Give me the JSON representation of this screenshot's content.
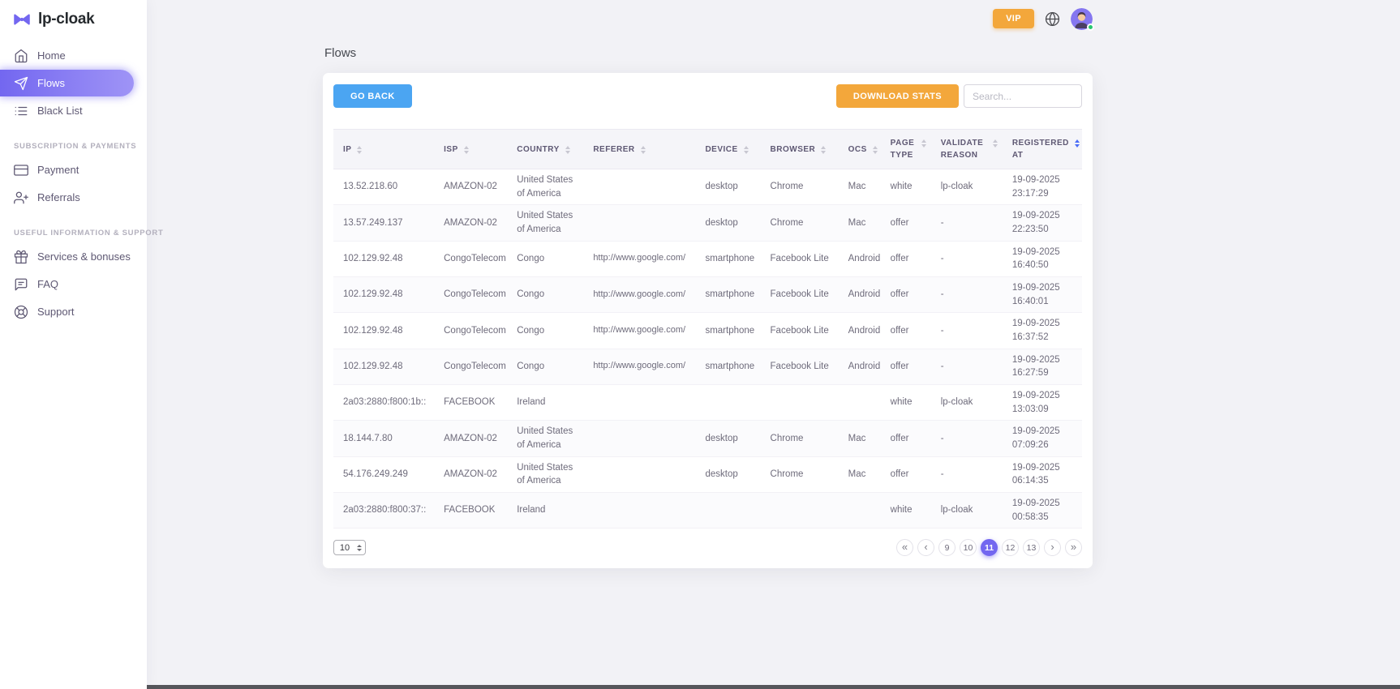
{
  "colors": {
    "brand_purple": "#7367f0",
    "brand_gradient_end": "#9f94f6",
    "amber": "#f3a73b",
    "blue": "#4ba5f2",
    "pagination_active": "#7367f0",
    "sort_active": "#4a6cf7",
    "online_green": "#28c76f",
    "page_background": "#f2f2f6"
  },
  "brand": {
    "name": "lp-cloak",
    "logo_icon": "bowtie-icon"
  },
  "topbar": {
    "vip_label": "VIP",
    "icons": {
      "language": "globe-icon",
      "avatar": "user-avatar",
      "status": "online-dot"
    }
  },
  "sidebar": {
    "items": [
      {
        "label": "Home",
        "icon": "home-icon",
        "active": false
      },
      {
        "label": "Flows",
        "icon": "flows-icon",
        "active": true
      },
      {
        "label": "Black List",
        "icon": "list-icon",
        "active": false
      },
      {
        "label": "Payment",
        "icon": "credit-card-icon",
        "active": false
      },
      {
        "label": "Referrals",
        "icon": "users-icon",
        "active": false
      },
      {
        "label": "Services & bonuses",
        "icon": "gift-icon",
        "active": false
      },
      {
        "label": "FAQ",
        "icon": "chat-icon",
        "active": false
      },
      {
        "label": "Support",
        "icon": "life-buoy-icon",
        "active": false
      }
    ],
    "sections": [
      {
        "label": "SUBSCRIPTION & PAYMENTS"
      },
      {
        "label": "USEFUL INFORMATION & SUPPORT"
      }
    ]
  },
  "page": {
    "title": "Flows"
  },
  "toolbar": {
    "go_back_label": "GO BACK",
    "download_stats_label": "DOWNLOAD STATS",
    "search_placeholder": "Search..."
  },
  "table": {
    "columns": [
      {
        "key": "ip",
        "label": "IP",
        "sorted": false
      },
      {
        "key": "isp",
        "label": "ISP",
        "sorted": false
      },
      {
        "key": "country",
        "label": "COUNTRY",
        "sorted": false
      },
      {
        "key": "referer",
        "label": "REFERER",
        "sorted": false
      },
      {
        "key": "device",
        "label": "DEVICE",
        "sorted": false
      },
      {
        "key": "browser",
        "label": "BROWSER",
        "sorted": false
      },
      {
        "key": "ocs",
        "label": "OCS",
        "sorted": false
      },
      {
        "key": "page_type",
        "label": "PAGE TYPE",
        "sorted": false
      },
      {
        "key": "validate_reason",
        "label": "VALIDATE REASON",
        "sorted": false
      },
      {
        "key": "registered_at",
        "label": "REGISTERED AT",
        "sorted": true
      }
    ],
    "rows": [
      {
        "ip": "13.52.218.60",
        "isp": "AMAZON-02",
        "country": "United States of America",
        "referer": "",
        "device": "desktop",
        "browser": "Chrome",
        "ocs": "Mac",
        "page_type": "white",
        "validate_reason": "lp-cloak",
        "registered_at": "19-09-2025 23:17:29"
      },
      {
        "ip": "13.57.249.137",
        "isp": "AMAZON-02",
        "country": "United States of America",
        "referer": "",
        "device": "desktop",
        "browser": "Chrome",
        "ocs": "Mac",
        "page_type": "offer",
        "validate_reason": "-",
        "registered_at": "19-09-2025 22:23:50"
      },
      {
        "ip": "102.129.92.48",
        "isp": "CongoTelecom",
        "country": "Congo",
        "referer": "http://www.google.com/",
        "device": "smartphone",
        "browser": "Facebook Lite",
        "ocs": "Android",
        "page_type": "offer",
        "validate_reason": "-",
        "registered_at": "19-09-2025 16:40:50"
      },
      {
        "ip": "102.129.92.48",
        "isp": "CongoTelecom",
        "country": "Congo",
        "referer": "http://www.google.com/",
        "device": "smartphone",
        "browser": "Facebook Lite",
        "ocs": "Android",
        "page_type": "offer",
        "validate_reason": "-",
        "registered_at": "19-09-2025 16:40:01"
      },
      {
        "ip": "102.129.92.48",
        "isp": "CongoTelecom",
        "country": "Congo",
        "referer": "http://www.google.com/",
        "device": "smartphone",
        "browser": "Facebook Lite",
        "ocs": "Android",
        "page_type": "offer",
        "validate_reason": "-",
        "registered_at": "19-09-2025 16:37:52"
      },
      {
        "ip": "102.129.92.48",
        "isp": "CongoTelecom",
        "country": "Congo",
        "referer": "http://www.google.com/",
        "device": "smartphone",
        "browser": "Facebook Lite",
        "ocs": "Android",
        "page_type": "offer",
        "validate_reason": "-",
        "registered_at": "19-09-2025 16:27:59"
      },
      {
        "ip": "2a03:2880:f800:1b::",
        "isp": "FACEBOOK",
        "country": "Ireland",
        "referer": "",
        "device": "",
        "browser": "",
        "ocs": "",
        "page_type": "white",
        "validate_reason": "lp-cloak",
        "registered_at": "19-09-2025 13:03:09"
      },
      {
        "ip": "18.144.7.80",
        "isp": "AMAZON-02",
        "country": "United States of America",
        "referer": "",
        "device": "desktop",
        "browser": "Chrome",
        "ocs": "Mac",
        "page_type": "offer",
        "validate_reason": "-",
        "registered_at": "19-09-2025 07:09:26"
      },
      {
        "ip": "54.176.249.249",
        "isp": "AMAZON-02",
        "country": "United States of America",
        "referer": "",
        "device": "desktop",
        "browser": "Chrome",
        "ocs": "Mac",
        "page_type": "offer",
        "validate_reason": "-",
        "registered_at": "19-09-2025 06:14:35"
      },
      {
        "ip": "2a03:2880:f800:37::",
        "isp": "FACEBOOK",
        "country": "Ireland",
        "referer": "",
        "device": "",
        "browser": "",
        "ocs": "",
        "page_type": "white",
        "validate_reason": "lp-cloak",
        "registered_at": "19-09-2025 00:58:35"
      }
    ]
  },
  "pagination": {
    "page_size": "10",
    "pages": [
      "9",
      "10",
      "11",
      "12",
      "13"
    ],
    "active_page": "11",
    "first_icon": "«",
    "prev_icon": "‹",
    "next_icon": "›",
    "last_icon": "»"
  }
}
